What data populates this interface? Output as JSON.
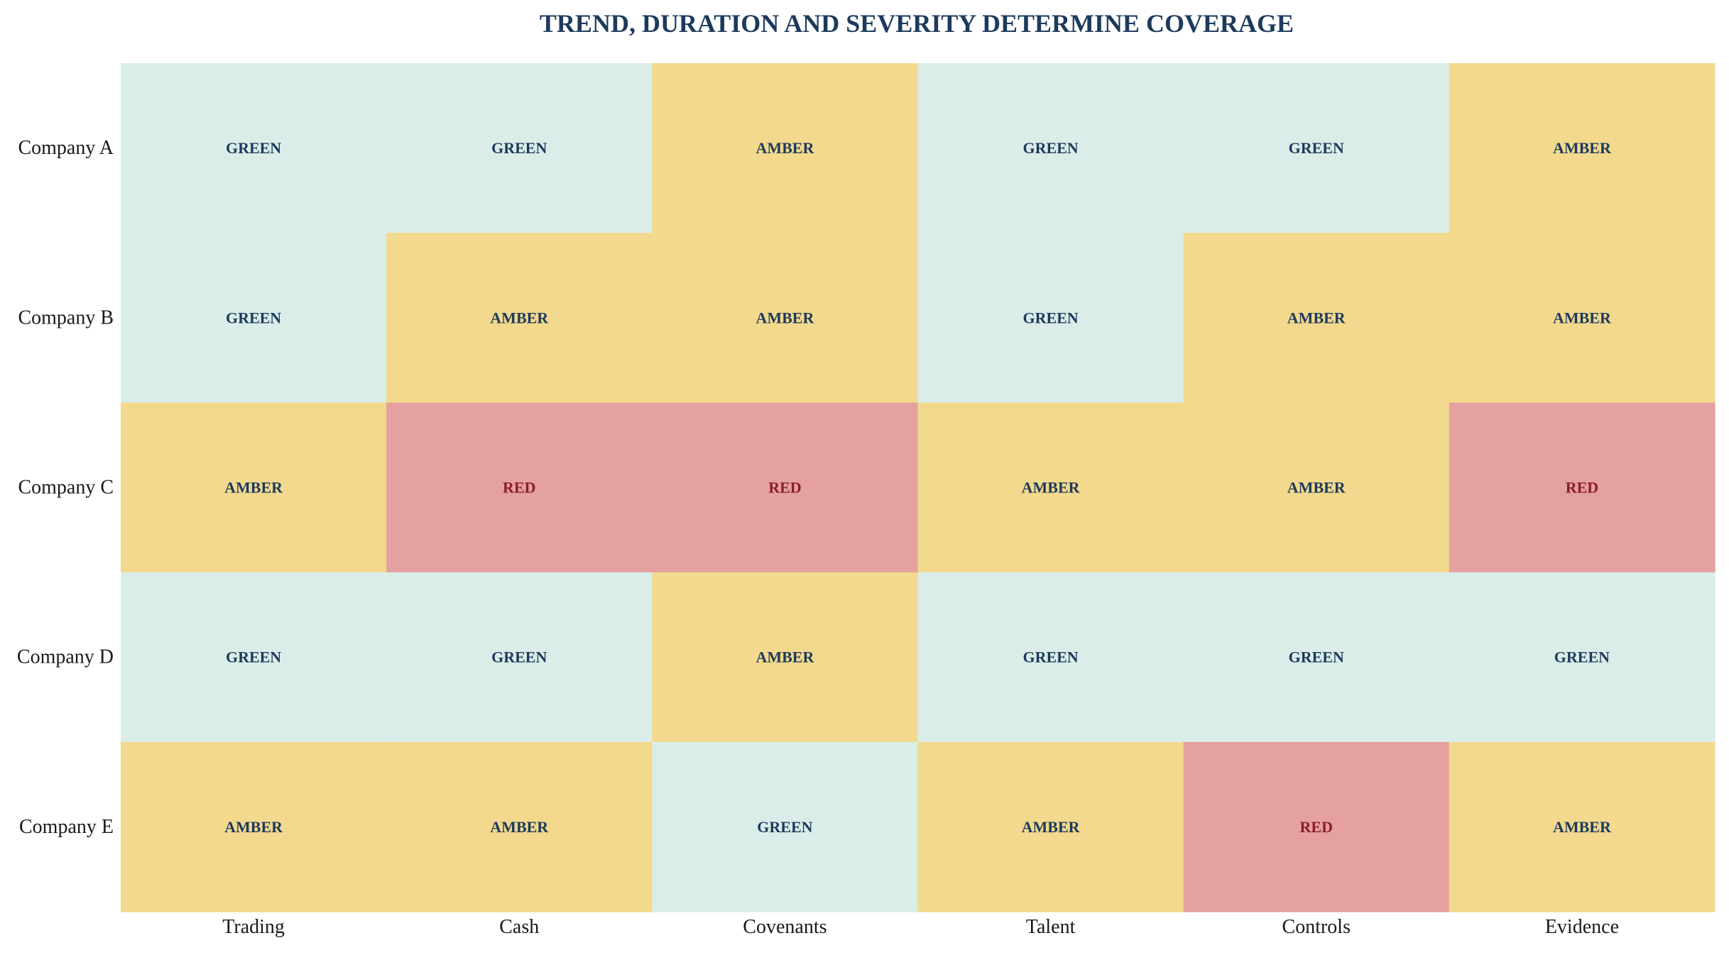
{
  "chart_data": {
    "type": "heatmap",
    "title": "TREND, DURATION AND SEVERITY DETERMINE COVERAGE",
    "xlabel": "",
    "ylabel": "",
    "x_categories": [
      "Trading",
      "Cash",
      "Covenants",
      "Talent",
      "Controls",
      "Evidence"
    ],
    "y_categories": [
      "Company A",
      "Company B",
      "Company C",
      "Company D",
      "Company E"
    ],
    "values": [
      [
        "GREEN",
        "GREEN",
        "AMBER",
        "GREEN",
        "GREEN",
        "AMBER"
      ],
      [
        "GREEN",
        "AMBER",
        "AMBER",
        "GREEN",
        "AMBER",
        "AMBER"
      ],
      [
        "AMBER",
        "RED",
        "RED",
        "AMBER",
        "AMBER",
        "RED"
      ],
      [
        "GREEN",
        "GREEN",
        "AMBER",
        "GREEN",
        "GREEN",
        "GREEN"
      ],
      [
        "AMBER",
        "AMBER",
        "GREEN",
        "AMBER",
        "RED",
        "AMBER"
      ]
    ],
    "grid": false,
    "legend": "none"
  },
  "colors": {
    "title": "#1d3a5c",
    "label": "#1a1a1a",
    "cell_fill": {
      "GREEN": "#dbede9",
      "AMBER": "#f2d98d",
      "RED": "#e5a0a0"
    },
    "cell_text": {
      "GREEN": "#1d3a5c",
      "AMBER": "#1d3a5c",
      "RED": "#8b1e2a"
    }
  }
}
